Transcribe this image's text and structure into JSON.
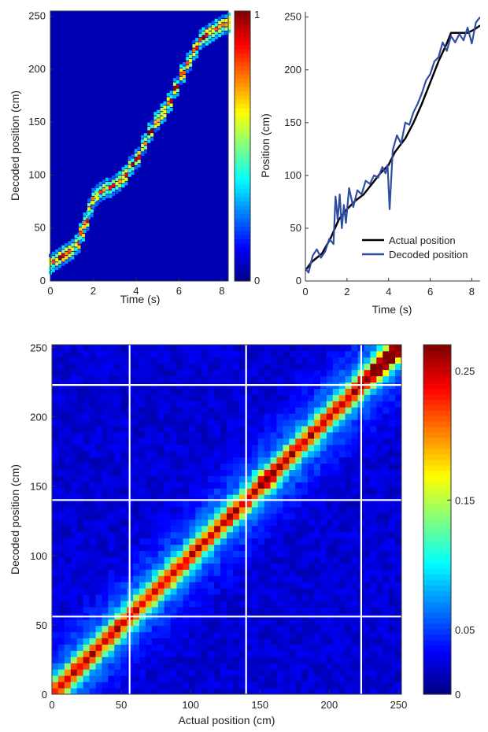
{
  "chart_data": [
    {
      "id": "posterior",
      "type": "heatmap",
      "title": "",
      "xlabel": "Time (s)",
      "ylabel": "Decoded position (cm)",
      "xlim": [
        0,
        8.3
      ],
      "ylim": [
        0,
        255
      ],
      "xticks": [
        0,
        2,
        4,
        6,
        8
      ],
      "yticks": [
        0,
        50,
        100,
        150,
        200,
        250
      ],
      "background_value": 0.05,
      "trajectory": {
        "t": [
          0,
          0.3,
          0.6,
          0.9,
          1.2,
          1.4,
          1.6,
          1.8,
          2.0,
          2.2,
          2.5,
          2.8,
          3.1,
          3.4,
          3.7,
          4.0,
          4.3,
          4.6,
          4.9,
          5.2,
          5.5,
          5.8,
          6.1,
          6.4,
          6.7,
          7.0,
          7.3,
          7.6,
          7.9,
          8.2
        ],
        "pos": [
          16,
          20,
          24,
          28,
          34,
          45,
          55,
          68,
          78,
          82,
          86,
          88,
          92,
          98,
          108,
          115,
          128,
          140,
          150,
          158,
          168,
          182,
          195,
          206,
          218,
          228,
          232,
          236,
          240,
          242
        ]
      },
      "colorbar": {
        "min": 0,
        "max": 1,
        "ticks": [
          0,
          1
        ],
        "tick_labels": [
          "0",
          "1"
        ],
        "colormap": "jet"
      }
    },
    {
      "id": "trajectory",
      "type": "line",
      "title": "",
      "xlabel": "Time (s)",
      "ylabel": "Position (cm)",
      "xlim": [
        0,
        8.4
      ],
      "ylim": [
        0,
        255
      ],
      "xticks": [
        0,
        2,
        4,
        6,
        8
      ],
      "yticks": [
        0,
        50,
        100,
        150,
        200,
        250
      ],
      "legend": "bottom-right",
      "series": [
        {
          "name": "Actual position",
          "color": "#000000",
          "x": [
            0,
            0.3,
            0.8,
            1.2,
            1.6,
            2.0,
            2.4,
            2.8,
            3.2,
            3.6,
            4.0,
            4.3,
            4.8,
            5.2,
            5.6,
            6.0,
            6.4,
            6.8,
            7.0,
            7.4,
            7.8,
            8.1,
            8.4
          ],
          "y": [
            10,
            18,
            26,
            40,
            58,
            68,
            76,
            82,
            92,
            102,
            110,
            122,
            135,
            150,
            168,
            188,
            208,
            225,
            235,
            235,
            235,
            238,
            242
          ]
        },
        {
          "name": "Decoded position",
          "color": "#2f4da1",
          "x": [
            0,
            0.15,
            0.35,
            0.55,
            0.75,
            0.95,
            1.15,
            1.35,
            1.45,
            1.55,
            1.65,
            1.75,
            1.85,
            1.95,
            2.1,
            2.3,
            2.5,
            2.7,
            2.9,
            3.1,
            3.3,
            3.5,
            3.7,
            3.85,
            3.95,
            4.05,
            4.2,
            4.4,
            4.6,
            4.8,
            5.0,
            5.2,
            5.4,
            5.6,
            5.8,
            6.0,
            6.2,
            6.4,
            6.6,
            6.8,
            7.0,
            7.2,
            7.4,
            7.6,
            7.8,
            8.0,
            8.2,
            8.4
          ],
          "y": [
            12,
            8,
            24,
            30,
            22,
            28,
            40,
            35,
            80,
            58,
            82,
            50,
            72,
            55,
            88,
            70,
            86,
            82,
            95,
            92,
            100,
            98,
            108,
            102,
            110,
            68,
            124,
            138,
            130,
            150,
            148,
            160,
            168,
            178,
            190,
            196,
            208,
            212,
            226,
            218,
            232,
            226,
            234,
            228,
            240,
            225,
            245,
            250
          ]
        }
      ]
    },
    {
      "id": "confusion",
      "type": "heatmap",
      "title": "",
      "xlabel": "Actual position (cm)",
      "ylabel": "Decoded position (cm)",
      "xlim": [
        0,
        252
      ],
      "ylim": [
        0,
        252
      ],
      "xticks": [
        0,
        50,
        100,
        150,
        200,
        250
      ],
      "yticks": [
        0,
        50,
        100,
        150,
        200,
        250
      ],
      "bins": 56,
      "diagonal_peak": 0.18,
      "peaks": [
        {
          "x": 155,
          "y": 155,
          "v": 0.24
        },
        {
          "x": 225,
          "y": 225,
          "v": 0.22
        },
        {
          "x": 235,
          "y": 235,
          "v": 0.24
        },
        {
          "x": 245,
          "y": 245,
          "v": 0.27
        }
      ],
      "boundaries": [
        56,
        140,
        223
      ],
      "boundary_color": "#ffffff",
      "colorbar": {
        "min": 0,
        "max": 0.27,
        "ticks": [
          0,
          0.05,
          0.15,
          0.25
        ],
        "tick_labels": [
          "0",
          "0.05",
          "0.15",
          "0.25"
        ],
        "colormap": "jet"
      }
    }
  ]
}
